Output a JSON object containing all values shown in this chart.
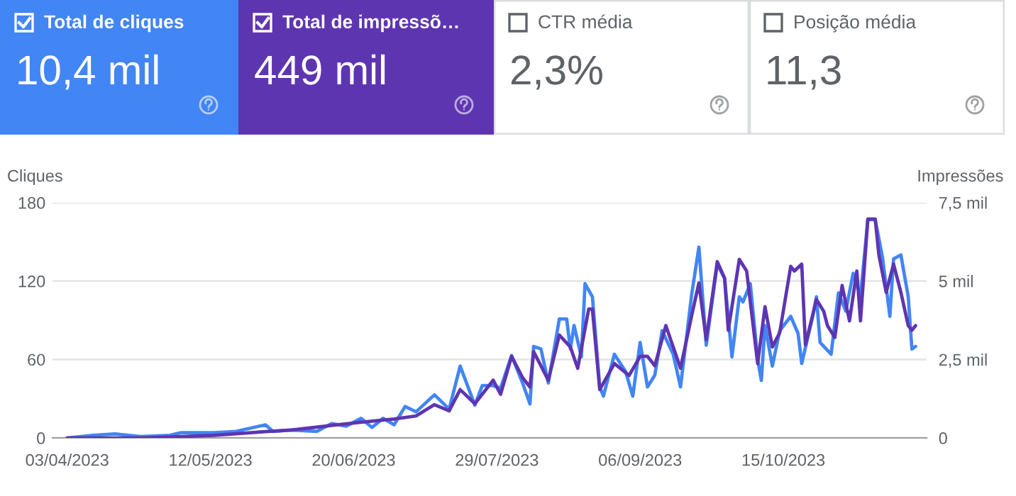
{
  "chart_data": [
    {
      "type": "other",
      "title": "Total de cliques",
      "annotations": [
        "10,4 mil"
      ]
    },
    {
      "type": "other",
      "title": "Total de impressõ…",
      "annotations": [
        "449 mil"
      ]
    },
    {
      "type": "other",
      "title": "CTR média",
      "annotations": [
        "2,3%"
      ]
    },
    {
      "type": "other",
      "title": "Posição média",
      "annotations": [
        "11,3"
      ]
    },
    {
      "type": "line",
      "ylabel": "Cliques",
      "y2label": "Impressões",
      "xlim": [
        "2023-03-30",
        "2023-11-23"
      ],
      "xticks": [
        {
          "value": "2023-04-03",
          "label": "03/04/2023"
        },
        {
          "value": "2023-05-12",
          "label": "12/05/2023"
        },
        {
          "value": "2023-06-20",
          "label": "20/06/2023"
        },
        {
          "value": "2023-07-29",
          "label": "29/07/2023"
        },
        {
          "value": "2023-09-06",
          "label": "06/09/2023"
        },
        {
          "value": "2023-10-15",
          "label": "15/10/2023"
        }
      ],
      "ylim": [
        0,
        180
      ],
      "yticks": [
        0,
        60,
        120,
        180
      ],
      "y2lim": [
        0,
        7.5
      ],
      "y2ticks": [
        0,
        {
          "value": 2.5,
          "label": "2,5 mil"
        },
        {
          "value": 5,
          "label": "5 mil"
        },
        {
          "value": 7.5,
          "label": "7,5 mil"
        }
      ],
      "grid": "y",
      "series": [
        {
          "color": "#4285f4",
          "x": [
            "2023-04-03",
            "2023-04-10",
            "2023-04-16",
            "2023-04-23",
            "2023-05-01",
            "2023-05-04",
            "2023-05-13",
            "2023-05-19",
            "2023-05-27",
            "2023-05-29",
            "2023-06-03",
            "2023-06-10",
            "2023-06-14",
            "2023-06-18",
            "2023-06-22",
            "2023-06-25",
            "2023-06-28",
            "2023-07-01",
            "2023-07-04",
            "2023-07-07",
            "2023-07-12",
            "2023-07-16",
            "2023-07-19",
            "2023-07-23",
            "2023-07-25",
            "2023-07-28",
            "2023-07-30",
            "2023-08-02",
            "2023-08-05",
            "2023-08-07",
            "2023-08-08",
            "2023-08-10",
            "2023-08-12",
            "2023-08-15",
            "2023-08-17",
            "2023-08-18",
            "2023-08-19",
            "2023-08-21",
            "2023-08-22",
            "2023-08-24",
            "2023-08-26",
            "2023-08-27",
            "2023-08-30",
            "2023-09-02",
            "2023-09-04",
            "2023-09-06",
            "2023-09-08",
            "2023-09-10",
            "2023-09-12",
            "2023-09-15",
            "2023-09-17",
            "2023-09-20",
            "2023-09-22",
            "2023-09-24",
            "2023-09-27",
            "2023-09-29",
            "2023-10-01",
            "2023-10-03",
            "2023-10-04",
            "2023-10-06",
            "2023-10-08",
            "2023-10-09",
            "2023-10-10",
            "2023-10-12",
            "2023-10-14",
            "2023-10-17",
            "2023-10-19",
            "2023-10-20",
            "2023-10-23",
            "2023-10-24",
            "2023-10-25",
            "2023-10-28",
            "2023-10-30",
            "2023-11-01",
            "2023-11-03",
            "2023-11-05",
            "2023-11-07",
            "2023-11-09",
            "2023-11-11",
            "2023-11-13",
            "2023-11-14",
            "2023-11-16",
            "2023-11-18",
            "2023-11-19",
            "2023-11-20"
          ],
          "values": [
            0,
            2,
            3,
            1,
            2,
            4,
            4,
            5,
            10,
            5,
            6,
            5,
            11,
            9,
            15,
            8,
            15,
            10,
            24,
            20,
            33,
            22,
            55,
            25,
            40,
            40,
            38,
            63,
            42,
            26,
            70,
            68,
            42,
            91,
            91,
            68,
            86,
            62,
            118,
            108,
            39,
            32,
            64,
            51,
            32,
            73,
            39,
            48,
            82,
            64,
            39,
            109,
            146,
            71,
            133,
            122,
            62,
            108,
            104,
            118,
            60,
            44,
            86,
            55,
            82,
            93,
            80,
            57,
            93,
            108,
            73,
            64,
            111,
            97,
            126,
            108,
            167,
            167,
            138,
            93,
            137,
            140,
            108,
            68,
            70
          ]
        },
        {
          "color": "#5e35b1",
          "axis": "y2",
          "x": [
            "2023-04-03",
            "2023-04-23",
            "2023-05-13",
            "2023-05-27",
            "2023-06-03",
            "2023-06-14",
            "2023-06-22",
            "2023-07-01",
            "2023-07-07",
            "2023-07-12",
            "2023-07-16",
            "2023-07-19",
            "2023-07-23",
            "2023-07-28",
            "2023-07-30",
            "2023-08-02",
            "2023-08-05",
            "2023-08-07",
            "2023-08-08",
            "2023-08-12",
            "2023-08-15",
            "2023-08-18",
            "2023-08-20",
            "2023-08-23",
            "2023-08-24",
            "2023-08-26",
            "2023-08-30",
            "2023-09-03",
            "2023-09-06",
            "2023-09-08",
            "2023-09-10",
            "2023-09-13",
            "2023-09-17",
            "2023-09-20",
            "2023-09-22",
            "2023-09-24",
            "2023-09-27",
            "2023-09-29",
            "2023-09-30",
            "2023-10-03",
            "2023-10-05",
            "2023-10-08",
            "2023-10-10",
            "2023-10-12",
            "2023-10-14",
            "2023-10-17",
            "2023-10-18",
            "2023-10-20",
            "2023-10-21",
            "2023-10-24",
            "2023-10-26",
            "2023-10-27",
            "2023-10-29",
            "2023-10-31",
            "2023-11-02",
            "2023-11-04",
            "2023-11-05",
            "2023-11-07",
            "2023-11-09",
            "2023-11-10",
            "2023-11-12",
            "2023-11-14",
            "2023-11-16",
            "2023-11-18",
            "2023-11-19",
            "2023-11-20"
          ],
          "values": [
            0,
            0,
            0.08,
            0.2,
            0.25,
            0.4,
            0.5,
            0.6,
            0.7,
            1.06,
            0.86,
            1.54,
            1.09,
            1.84,
            1.39,
            2.6,
            1.92,
            1.62,
            2.75,
            1.84,
            3.28,
            2.9,
            2.22,
            4.11,
            4.11,
            1.54,
            2.37,
            1.99,
            2.6,
            2.6,
            2.3,
            3.58,
            2.22,
            3.88,
            4.94,
            3.13,
            5.62,
            5.09,
            3.43,
            5.69,
            5.32,
            2.37,
            4.18,
            2.9,
            3.35,
            5.47,
            5.32,
            5.54,
            2.97,
            4.41,
            4.03,
            3.58,
            3.2,
            4.86,
            3.73,
            5.32,
            3.73,
            6.98,
            6.98,
            5.84,
            4.64,
            5.54,
            4.64,
            3.58,
            3.43,
            3.58
          ]
        }
      ]
    }
  ]
}
